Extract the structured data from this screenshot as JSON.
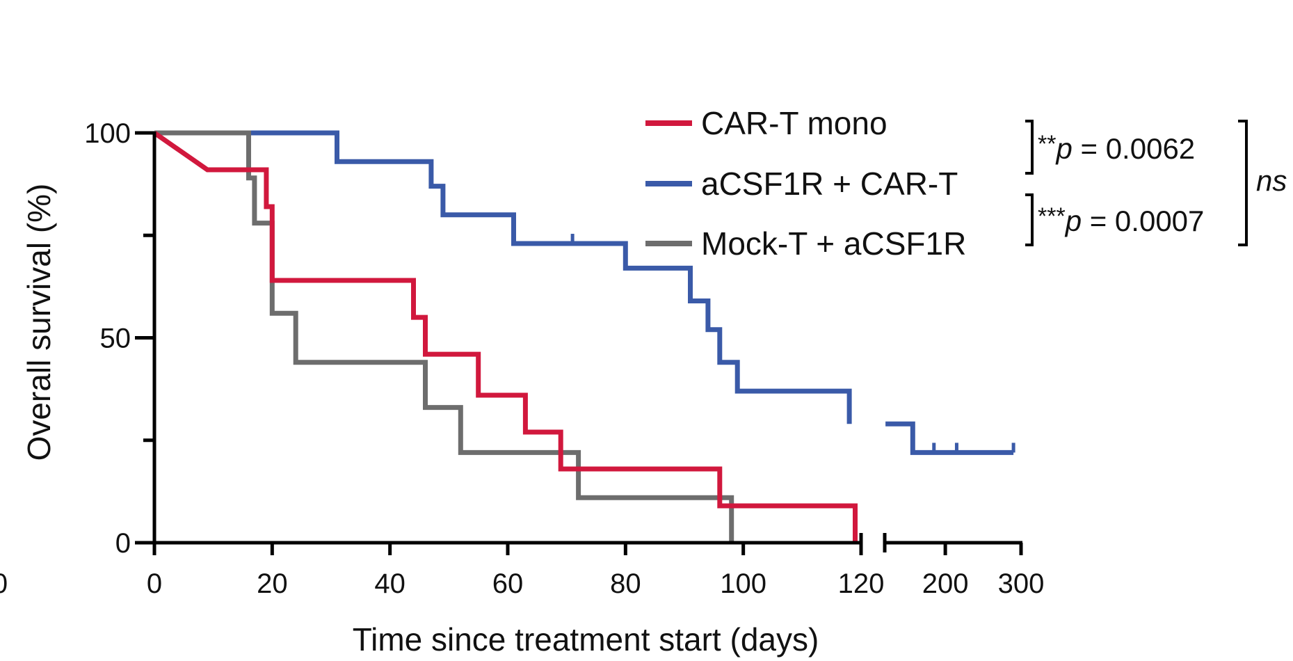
{
  "chart_data": {
    "type": "line",
    "subtype": "kaplan-meier step",
    "title": "",
    "xlabel": "Time since treatment start (days)",
    "ylabel": "Overall survival (%)",
    "xlim": [
      0,
      300
    ],
    "ylim": [
      0,
      100
    ],
    "x_axis_segments": [
      {
        "range": [
          0,
          120
        ],
        "tick_labels": [
          "0",
          "20",
          "40",
          "60",
          "80",
          "100",
          "120"
        ]
      },
      {
        "range": [
          120,
          300
        ],
        "tick_labels": [
          "200",
          "300"
        ]
      }
    ],
    "extra_left_tick_label": "0",
    "y_tick_labels": [
      "100",
      "50",
      "0"
    ],
    "y_minor_ticks": [
      25,
      75
    ],
    "grid": false,
    "legend": "top-right",
    "series": [
      {
        "name": "CAR-T mono",
        "color": "#d1183d",
        "steps": [
          [
            0,
            100
          ],
          [
            9,
            91
          ],
          [
            19,
            91
          ],
          [
            19,
            82
          ],
          [
            20,
            82
          ],
          [
            20,
            64
          ],
          [
            44,
            64
          ],
          [
            44,
            55
          ],
          [
            46,
            55
          ],
          [
            46,
            46
          ],
          [
            55,
            46
          ],
          [
            55,
            36
          ],
          [
            63,
            36
          ],
          [
            63,
            27
          ],
          [
            69,
            27
          ],
          [
            69,
            18
          ],
          [
            96,
            18
          ],
          [
            96,
            9
          ],
          [
            119,
            9
          ],
          [
            119,
            0
          ]
        ],
        "censored": []
      },
      {
        "name": "aCSF1R + CAR-T",
        "color": "#3a5aa8",
        "steps": [
          [
            0,
            100
          ],
          [
            31,
            100
          ],
          [
            31,
            93
          ],
          [
            47,
            93
          ],
          [
            47,
            87
          ],
          [
            49,
            87
          ],
          [
            49,
            80
          ],
          [
            61,
            80
          ],
          [
            61,
            73
          ],
          [
            80,
            73
          ],
          [
            80,
            67
          ],
          [
            91,
            67
          ],
          [
            91,
            59
          ],
          [
            94,
            59
          ],
          [
            94,
            52
          ],
          [
            96,
            52
          ],
          [
            96,
            44
          ],
          [
            99,
            44
          ],
          [
            99,
            37
          ],
          [
            118,
            37
          ],
          [
            118,
            29
          ],
          [
            121,
            29
          ],
          [
            128,
            29
          ],
          [
            157,
            29
          ],
          [
            157,
            22
          ],
          [
            290,
            22
          ]
        ],
        "censored": [
          [
            71,
            73
          ],
          [
            185,
            22
          ],
          [
            215,
            22
          ],
          [
            290,
            22
          ]
        ]
      },
      {
        "name": "Mock-T + aCSF1R",
        "color": "#6d6d6d",
        "steps": [
          [
            0,
            100
          ],
          [
            16,
            100
          ],
          [
            16,
            89
          ],
          [
            17,
            89
          ],
          [
            17,
            78
          ],
          [
            20,
            78
          ],
          [
            20,
            56
          ],
          [
            24,
            56
          ],
          [
            24,
            44
          ],
          [
            46,
            44
          ],
          [
            46,
            33
          ],
          [
            52,
            33
          ],
          [
            52,
            22
          ],
          [
            72,
            22
          ],
          [
            72,
            11
          ],
          [
            98,
            11
          ],
          [
            98,
            0
          ]
        ],
        "censored": []
      }
    ],
    "annotations": {
      "comparison_1": {
        "stars": "**",
        "p_label": "p",
        "p_value": " = 0.0062"
      },
      "comparison_2": {
        "stars": "***",
        "p_label": "p",
        "p_value": " = 0.0007"
      },
      "comparison_3": {
        "label": "ns"
      }
    }
  }
}
